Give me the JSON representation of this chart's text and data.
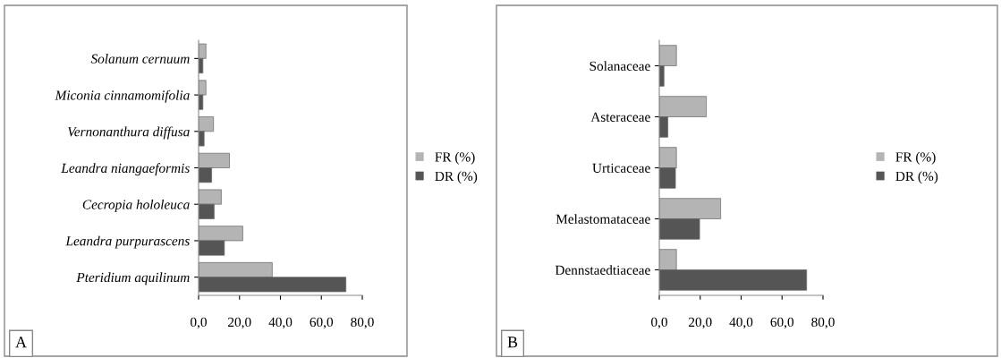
{
  "chart_data": [
    {
      "type": "bar",
      "orientation": "horizontal",
      "categories": [
        "Solanum cernuum",
        "Miconia cinnamomifolia",
        "Vernonanthura diffusa",
        "Leandra niangaeformis",
        "Cecropia hololeuca",
        "Leandra purpurascens",
        "Pteridium aquilinum"
      ],
      "series": [
        {
          "name": "FR (%)",
          "color": "#b4b4b4",
          "values": [
            3.6,
            3.6,
            7.3,
            15.1,
            11.1,
            21.6,
            36.0
          ]
        },
        {
          "name": "DR (%)",
          "color": "#555555",
          "values": [
            2.1,
            2.1,
            2.7,
            6.4,
            7.6,
            12.6,
            72.0
          ]
        }
      ],
      "xlim": [
        0,
        80
      ],
      "xticks": [
        {
          "value": 0,
          "label": "0,0"
        },
        {
          "value": 20,
          "label": "20,0"
        },
        {
          "value": 40,
          "label": "40,0"
        },
        {
          "value": 60,
          "label": "60,0"
        },
        {
          "value": 80,
          "label": "80,0"
        }
      ],
      "legend": "right",
      "grid": false,
      "annotations": [
        "A"
      ]
    },
    {
      "type": "bar",
      "orientation": "horizontal",
      "categories": [
        "Solanaceae",
        "Asteraceae",
        "Urticaceae",
        "Melastomataceae",
        "Dennstaedtiaceae"
      ],
      "series": [
        {
          "name": "FR (%)",
          "color": "#b4b4b4",
          "values": [
            8.4,
            23.0,
            8.4,
            30.0,
            8.4
          ]
        },
        {
          "name": "DR (%)",
          "color": "#555555",
          "values": [
            2.3,
            4.2,
            7.9,
            19.7,
            72.0
          ]
        }
      ],
      "xlim": [
        0,
        80
      ],
      "xticks": [
        {
          "value": 0,
          "label": "0,0"
        },
        {
          "value": 20,
          "label": "20,0"
        },
        {
          "value": 40,
          "label": "40,0"
        },
        {
          "value": 60,
          "label": "60,0"
        },
        {
          "value": 80,
          "label": "80,0"
        }
      ],
      "legend": "right",
      "grid": false,
      "annotations": [
        "B"
      ]
    }
  ]
}
